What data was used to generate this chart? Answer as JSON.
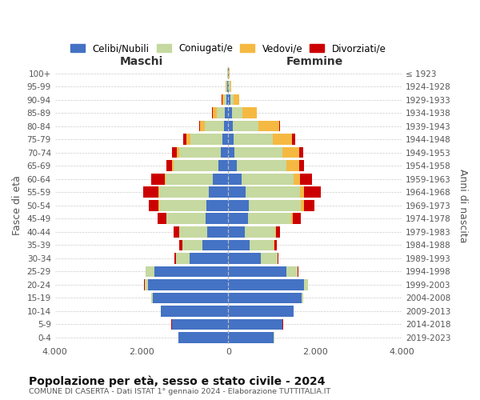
{
  "age_groups": [
    "0-4",
    "5-9",
    "10-14",
    "15-19",
    "20-24",
    "25-29",
    "30-34",
    "35-39",
    "40-44",
    "45-49",
    "50-54",
    "55-59",
    "60-64",
    "65-69",
    "70-74",
    "75-79",
    "80-84",
    "85-89",
    "90-94",
    "95-99",
    "100+"
  ],
  "birth_years": [
    "2019-2023",
    "2014-2018",
    "2009-2013",
    "2004-2008",
    "1999-2003",
    "1994-1998",
    "1989-1993",
    "1984-1988",
    "1979-1983",
    "1974-1978",
    "1969-1973",
    "1964-1968",
    "1959-1963",
    "1954-1958",
    "1949-1953",
    "1944-1948",
    "1939-1943",
    "1934-1938",
    "1929-1933",
    "1924-1928",
    "≤ 1923"
  ],
  "maschi": {
    "celibi": [
      1150,
      1300,
      1550,
      1750,
      1850,
      1700,
      900,
      600,
      480,
      520,
      500,
      450,
      350,
      220,
      180,
      130,
      100,
      80,
      40,
      20,
      10
    ],
    "coniugati": [
      5,
      5,
      5,
      30,
      80,
      200,
      300,
      450,
      650,
      900,
      1100,
      1150,
      1100,
      1050,
      950,
      750,
      450,
      180,
      60,
      20,
      10
    ],
    "vedovi": [
      2,
      2,
      2,
      2,
      2,
      5,
      5,
      5,
      5,
      5,
      10,
      15,
      20,
      30,
      60,
      80,
      100,
      100,
      40,
      15,
      5
    ],
    "divorziati": [
      2,
      2,
      2,
      2,
      5,
      10,
      30,
      80,
      120,
      200,
      230,
      350,
      300,
      120,
      100,
      80,
      20,
      15,
      10,
      5,
      2
    ]
  },
  "femmine": {
    "nubili": [
      1050,
      1250,
      1500,
      1700,
      1750,
      1350,
      750,
      500,
      380,
      450,
      480,
      400,
      300,
      200,
      150,
      120,
      100,
      80,
      40,
      20,
      10
    ],
    "coniugate": [
      5,
      5,
      5,
      30,
      90,
      250,
      380,
      550,
      700,
      1000,
      1200,
      1250,
      1200,
      1150,
      1100,
      900,
      600,
      250,
      80,
      25,
      10
    ],
    "vedove": [
      2,
      2,
      2,
      2,
      2,
      5,
      5,
      10,
      15,
      30,
      60,
      100,
      150,
      280,
      380,
      450,
      480,
      320,
      130,
      25,
      5
    ],
    "divorziate": [
      2,
      2,
      2,
      2,
      5,
      5,
      20,
      60,
      100,
      200,
      250,
      380,
      280,
      120,
      100,
      80,
      20,
      15,
      10,
      5,
      2
    ]
  },
  "color_celibi": "#4472c4",
  "color_coniugati": "#c5d9a0",
  "color_vedovi": "#f5b942",
  "color_divorziati": "#cc0000",
  "xlim": 4000,
  "title": "Popolazione per età, sesso e stato civile - 2024",
  "subtitle": "COMUNE DI CASERTA - Dati ISTAT 1° gennaio 2024 - Elaborazione TUTTITALIA.IT",
  "ylabel_left": "Fasce di età",
  "ylabel_right": "Anni di nascita",
  "xlabel_left": "Maschi",
  "xlabel_right": "Femmine",
  "background_color": "#ffffff",
  "grid_color": "#cccccc"
}
